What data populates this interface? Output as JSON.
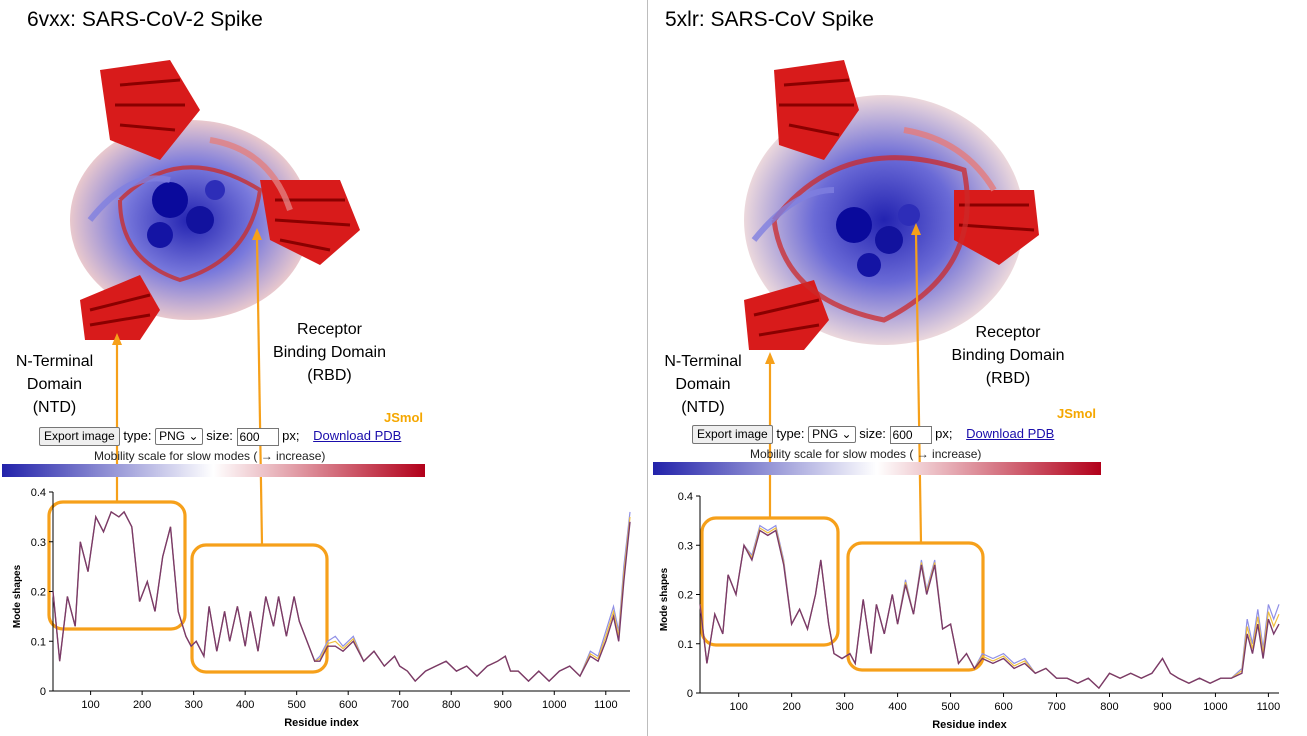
{
  "panels": [
    {
      "title": "6vxx: SARS-CoV-2 Spike",
      "ntd_label": [
        "N-Terminal",
        "Domain",
        "(NTD)"
      ],
      "rbd_label": [
        "Receptor",
        "Binding Domain",
        "(RBD)"
      ],
      "jsmol": "JSmol",
      "controls": {
        "export_button": "Export image",
        "type_label": "type:",
        "type_value": "PNG",
        "size_label": "size:",
        "size_value": "600",
        "px_label": "px;",
        "download_link": "Download PDB"
      },
      "scale_label": "Mobility scale for slow modes ( → increase)",
      "scale_colors": [
        "#1a0dab",
        "#ffffff",
        "#b2001a"
      ],
      "chart_data": {
        "type": "line",
        "xlabel": "Residue index",
        "ylabel": "Mode shapes",
        "xlim": [
          27,
          1147
        ],
        "ylim": [
          0,
          0.4
        ],
        "xticks": [
          100,
          200,
          300,
          400,
          500,
          600,
          700,
          800,
          900,
          1000,
          1100
        ],
        "yticks": [
          0,
          0.1,
          0.2,
          0.3,
          0.4
        ],
        "x": [
          27,
          40,
          55,
          70,
          80,
          95,
          110,
          125,
          140,
          155,
          165,
          180,
          195,
          210,
          225,
          240,
          255,
          270,
          285,
          295,
          305,
          320,
          330,
          345,
          360,
          370,
          385,
          400,
          410,
          425,
          440,
          455,
          465,
          480,
          495,
          505,
          520,
          535,
          545,
          560,
          575,
          590,
          610,
          630,
          650,
          670,
          690,
          700,
          715,
          730,
          750,
          770,
          790,
          810,
          830,
          850,
          870,
          890,
          905,
          915,
          930,
          950,
          970,
          990,
          1010,
          1030,
          1050,
          1070,
          1085,
          1100,
          1115,
          1125,
          1135,
          1147
        ],
        "values": [
          0.2,
          0.06,
          0.19,
          0.13,
          0.3,
          0.24,
          0.35,
          0.32,
          0.36,
          0.35,
          0.36,
          0.33,
          0.18,
          0.22,
          0.16,
          0.27,
          0.33,
          0.16,
          0.11,
          0.09,
          0.1,
          0.07,
          0.17,
          0.08,
          0.16,
          0.1,
          0.17,
          0.09,
          0.16,
          0.08,
          0.19,
          0.13,
          0.19,
          0.11,
          0.19,
          0.14,
          0.1,
          0.06,
          0.06,
          0.09,
          0.09,
          0.08,
          0.1,
          0.06,
          0.08,
          0.05,
          0.07,
          0.05,
          0.04,
          0.02,
          0.04,
          0.05,
          0.06,
          0.04,
          0.05,
          0.03,
          0.05,
          0.06,
          0.07,
          0.04,
          0.04,
          0.02,
          0.04,
          0.02,
          0.04,
          0.05,
          0.03,
          0.07,
          0.06,
          0.1,
          0.15,
          0.1,
          0.22,
          0.34
        ],
        "band": [
          0.0,
          0.0,
          0.0,
          0.0,
          0.0,
          0.0,
          0.0,
          0.0,
          0.0,
          0.0,
          0.0,
          0.0,
          0.0,
          0.0,
          0.0,
          0.0,
          0.0,
          0.0,
          0.0,
          0.0,
          0.0,
          0.0,
          0.0,
          0.0,
          0.0,
          0.0,
          0.0,
          0.0,
          0.0,
          0.0,
          0.0,
          0.0,
          0.0,
          0.0,
          0.0,
          0.0,
          0.0,
          0.0,
          0.01,
          0.01,
          0.02,
          0.01,
          0.01,
          0.0,
          0.0,
          0.0,
          0.0,
          0.0,
          0.0,
          0.0,
          0.0,
          0.0,
          0.0,
          0.0,
          0.0,
          0.0,
          0.0,
          0.0,
          0.0,
          0.0,
          0.0,
          0.0,
          0.0,
          0.0,
          0.0,
          0.0,
          0.0,
          0.01,
          0.01,
          0.02,
          0.02,
          0.02,
          0.03,
          0.02
        ]
      }
    },
    {
      "title": "5xlr: SARS-CoV Spike",
      "ntd_label": [
        "N-Terminal",
        "Domain",
        "(NTD)"
      ],
      "rbd_label": [
        "Receptor",
        "Binding Domain",
        "(RBD)"
      ],
      "jsmol": "JSmol",
      "controls": {
        "export_button": "Export image",
        "type_label": "type:",
        "type_value": "PNG",
        "size_label": "size:",
        "size_value": "600",
        "px_label": "px;",
        "download_link": "Download PDB"
      },
      "scale_label": "Mobility scale for slow modes ( → increase)",
      "scale_colors": [
        "#1a0dab",
        "#ffffff",
        "#b2001a"
      ],
      "chart_data": {
        "type": "line",
        "xlabel": "Residue index",
        "ylabel": "Mode shapes",
        "xlim": [
          27,
          1120
        ],
        "ylim": [
          0,
          0.4
        ],
        "xticks": [
          100,
          200,
          300,
          400,
          500,
          600,
          700,
          800,
          900,
          1000,
          1100
        ],
        "yticks": [
          0,
          0.1,
          0.2,
          0.3,
          0.4
        ],
        "x": [
          27,
          40,
          55,
          70,
          80,
          95,
          110,
          125,
          140,
          155,
          170,
          185,
          200,
          215,
          230,
          245,
          255,
          270,
          280,
          295,
          310,
          320,
          335,
          350,
          360,
          375,
          390,
          400,
          415,
          430,
          445,
          455,
          470,
          485,
          500,
          515,
          530,
          545,
          560,
          580,
          600,
          620,
          640,
          660,
          680,
          700,
          720,
          740,
          760,
          780,
          800,
          820,
          840,
          860,
          880,
          900,
          915,
          930,
          950,
          970,
          990,
          1010,
          1030,
          1050,
          1060,
          1070,
          1080,
          1090,
          1100,
          1110,
          1120
        ],
        "values": [
          0.18,
          0.06,
          0.16,
          0.12,
          0.24,
          0.2,
          0.3,
          0.27,
          0.33,
          0.32,
          0.33,
          0.26,
          0.14,
          0.17,
          0.13,
          0.2,
          0.27,
          0.14,
          0.08,
          0.07,
          0.08,
          0.06,
          0.19,
          0.08,
          0.18,
          0.12,
          0.2,
          0.14,
          0.22,
          0.16,
          0.26,
          0.2,
          0.26,
          0.13,
          0.14,
          0.06,
          0.08,
          0.05,
          0.07,
          0.06,
          0.07,
          0.05,
          0.06,
          0.04,
          0.05,
          0.03,
          0.03,
          0.02,
          0.03,
          0.01,
          0.04,
          0.03,
          0.04,
          0.03,
          0.04,
          0.07,
          0.04,
          0.03,
          0.02,
          0.03,
          0.02,
          0.03,
          0.03,
          0.04,
          0.12,
          0.08,
          0.14,
          0.07,
          0.15,
          0.12,
          0.14
        ],
        "band": [
          0.0,
          0.0,
          0.0,
          0.0,
          0.0,
          0.0,
          0.0,
          0.01,
          0.01,
          0.01,
          0.01,
          0.01,
          0.0,
          0.0,
          0.0,
          0.0,
          0.0,
          0.0,
          0.0,
          0.0,
          0.0,
          0.0,
          0.0,
          0.0,
          0.0,
          0.0,
          0.0,
          0.0,
          0.01,
          0.0,
          0.01,
          0.01,
          0.01,
          0.0,
          0.0,
          0.0,
          0.0,
          0.0,
          0.01,
          0.01,
          0.01,
          0.01,
          0.01,
          0.0,
          0.0,
          0.0,
          0.0,
          0.0,
          0.0,
          0.0,
          0.0,
          0.0,
          0.0,
          0.0,
          0.0,
          0.0,
          0.0,
          0.0,
          0.0,
          0.0,
          0.0,
          0.0,
          0.0,
          0.01,
          0.03,
          0.02,
          0.03,
          0.02,
          0.03,
          0.03,
          0.04
        ]
      }
    }
  ]
}
